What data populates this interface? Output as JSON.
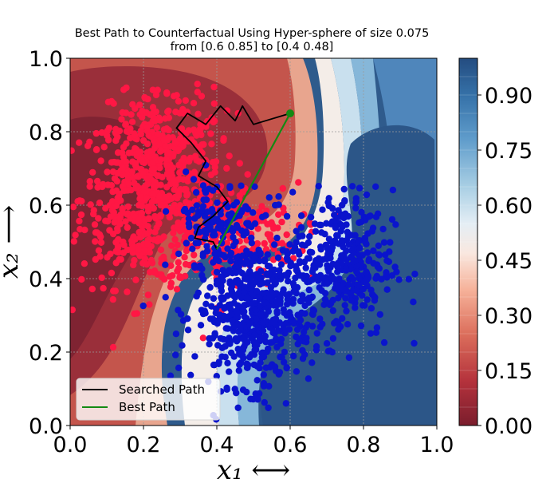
{
  "chart_data": {
    "type": "scatter",
    "title": "Best Path to Counterfactual Using Hyper-sphere of size 0.075",
    "subtitle": "from [0.6  0.85] to [0.4  0.48]",
    "xlabel": "x₁  ⟷",
    "ylabel": "x₂  ⟶",
    "xlim": [
      0.0,
      1.0
    ],
    "ylim": [
      0.0,
      1.0
    ],
    "x_ticks": [
      "0.0",
      "0.2",
      "0.4",
      "0.6",
      "0.8",
      "1.0"
    ],
    "y_ticks": [
      "0.0",
      "0.2",
      "0.4",
      "0.6",
      "0.8",
      "1.0"
    ],
    "grid": true,
    "colorbar": {
      "colormap": "RdBu",
      "range": [
        0.0,
        1.0
      ],
      "ticks": [
        "0.00",
        "0.15",
        "0.30",
        "0.45",
        "0.60",
        "0.75",
        "0.90"
      ]
    },
    "legend": {
      "placement": "lower-left",
      "entries": [
        {
          "label": "Searched Path",
          "color": "#000000"
        },
        {
          "label": "Best Path",
          "color": "#138a13"
        }
      ]
    },
    "point_classes": [
      {
        "class": 0,
        "color": "#ff1744"
      },
      {
        "class": 1,
        "color": "#0a14cc"
      }
    ],
    "best_path": {
      "start": [
        0.6,
        0.85
      ],
      "end": [
        0.4,
        0.48
      ]
    },
    "searched_path": [
      [
        0.6,
        0.85
      ],
      [
        0.5,
        0.82
      ],
      [
        0.47,
        0.87
      ],
      [
        0.45,
        0.83
      ],
      [
        0.41,
        0.87
      ],
      [
        0.37,
        0.82
      ],
      [
        0.32,
        0.85
      ],
      [
        0.29,
        0.81
      ],
      [
        0.33,
        0.77
      ],
      [
        0.37,
        0.72
      ],
      [
        0.35,
        0.68
      ],
      [
        0.4,
        0.65
      ],
      [
        0.43,
        0.61
      ],
      [
        0.39,
        0.57
      ],
      [
        0.35,
        0.54
      ],
      [
        0.34,
        0.51
      ],
      [
        0.39,
        0.5
      ],
      [
        0.4,
        0.48
      ]
    ],
    "clusters": [
      {
        "class": 0,
        "n": 520,
        "cx": 0.21,
        "cy": 0.62,
        "sx": 0.09,
        "sy": 0.12
      },
      {
        "class": 0,
        "n": 260,
        "cx": 0.42,
        "cy": 0.52,
        "sx": 0.1,
        "sy": 0.07
      },
      {
        "class": 0,
        "n": 140,
        "cx": 0.28,
        "cy": 0.78,
        "sx": 0.08,
        "sy": 0.07
      },
      {
        "class": 1,
        "n": 560,
        "cx": 0.5,
        "cy": 0.31,
        "sx": 0.08,
        "sy": 0.1
      },
      {
        "class": 1,
        "n": 340,
        "cx": 0.74,
        "cy": 0.44,
        "sx": 0.07,
        "sy": 0.1
      },
      {
        "class": 1,
        "n": 120,
        "cx": 0.4,
        "cy": 0.56,
        "sx": 0.06,
        "sy": 0.06
      }
    ]
  }
}
